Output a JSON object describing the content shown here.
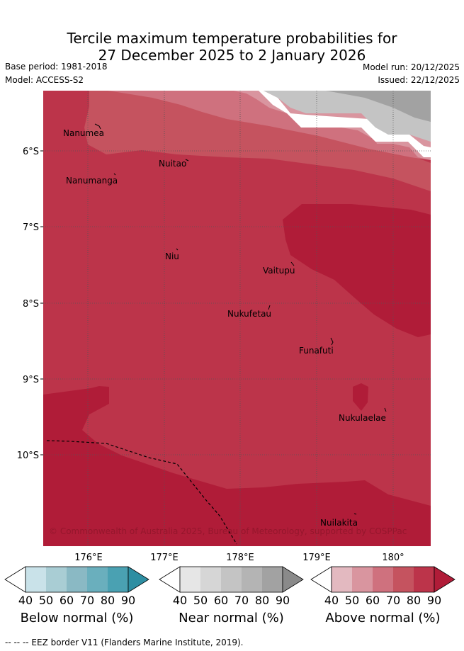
{
  "title": {
    "line1": "Tercile maximum temperature probabilities for",
    "line2": "27 December 2025 to 2 January 2026"
  },
  "meta": {
    "base_period": "Base period: 1981-2018",
    "model": "Model: ACCESS-S2",
    "model_run": "Model run: 20/12/2025",
    "issued": "Issued: 22/12/2025"
  },
  "map": {
    "lat_labels": [
      "6°S",
      "7°S",
      "8°S",
      "9°S",
      "10°S"
    ],
    "lon_labels": [
      "176°E",
      "177°E",
      "178°E",
      "179°E",
      "180°"
    ],
    "places": [
      "Nanumea",
      "Nuitao",
      "Nanumanga",
      "Niu",
      "Vaitupu",
      "Nukufetau",
      "Funafuti",
      "Nukulaelae",
      "Nuilakita"
    ],
    "copyright": "© Commonwealth of Australia 2025, Bureau of Meteorology, supported by COSPPac"
  },
  "colorbars": [
    {
      "label": "Below normal (%)",
      "ticks": [
        "40",
        "50",
        "60",
        "70",
        "80",
        "90"
      ],
      "colors": [
        "#ffffff",
        "#c9e2e9",
        "#a9cdd4",
        "#8ab9c4",
        "#6aafbd",
        "#4aa1b2",
        "#2d8ea2"
      ]
    },
    {
      "label": "Near normal (%)",
      "ticks": [
        "40",
        "50",
        "60",
        "70",
        "80",
        "90"
      ],
      "colors": [
        "#ffffff",
        "#e6e6e6",
        "#d6d6d6",
        "#c4c4c4",
        "#b4b4b4",
        "#a2a2a2",
        "#8a8a8a"
      ]
    },
    {
      "label": "Above normal (%)",
      "ticks": [
        "40",
        "50",
        "60",
        "70",
        "80",
        "90"
      ],
      "colors": [
        "#ffffff",
        "#e3b9c0",
        "#d9959f",
        "#cf717e",
        "#c5535f",
        "#bc344a",
        "#b01c38"
      ]
    }
  ],
  "footnote": "--  --  -- EEZ border V11 (Flanders Marine Institute, 2019)."
}
